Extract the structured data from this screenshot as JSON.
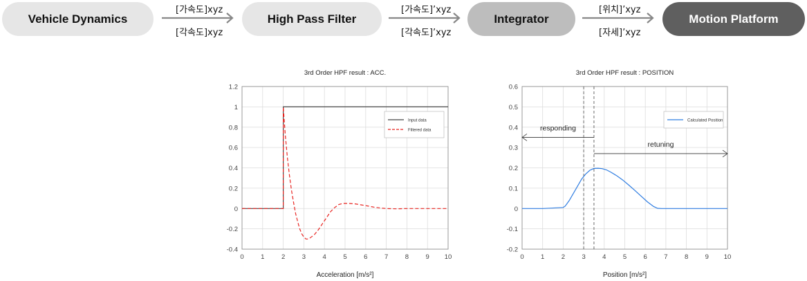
{
  "flow": {
    "steps": [
      {
        "label": "Vehicle Dynamics",
        "bg": "#e6e6e6",
        "fg": "#111111"
      },
      {
        "label": "High Pass Filter",
        "bg": "#e6e6e6",
        "fg": "#111111"
      },
      {
        "label": "Integrator",
        "bg": "#bdbdbd",
        "fg": "#111111"
      },
      {
        "label": "Motion Platform",
        "bg": "#5f5f5f",
        "fg": "#ffffff"
      }
    ],
    "arrows": [
      {
        "top": "[가속도]xyz",
        "bottom": "[각속도]xyz"
      },
      {
        "top": "[가속도]’xyz",
        "bottom": "[각속도]’xyz"
      },
      {
        "top": "[위치]’xyz",
        "bottom": "[자세]’xyz"
      }
    ]
  },
  "chart_data": [
    {
      "type": "line",
      "title": "3rd Order HPF result : ACC.",
      "xlabel": "Acceleration [m/s²]",
      "ylabel": "",
      "xlim": [
        0,
        10
      ],
      "ylim": [
        -0.4,
        1.2
      ],
      "xticks": [
        "0",
        "1",
        "2",
        "3",
        "4",
        "5",
        "6",
        "7",
        "8",
        "9",
        "10"
      ],
      "yticks": [
        "1.2",
        "1",
        "0.8",
        "0.6",
        "0.4",
        "0.2",
        "0",
        "-0.2",
        "-0.4"
      ],
      "ytick_values": [
        1.2,
        1,
        0.8,
        0.6,
        0.4,
        0.2,
        0,
        -0.2,
        -0.4
      ],
      "grid": true,
      "legend": "top-right",
      "series": [
        {
          "name": "Input data",
          "color": "#444444",
          "dash": false,
          "x": [
            0,
            2,
            2,
            10
          ],
          "y": [
            0,
            0,
            1,
            1
          ]
        },
        {
          "name": "Filtered data",
          "color": "#e8231f",
          "dash": true,
          "x": [
            0,
            2,
            2,
            2.1,
            2.2,
            2.3,
            2.4,
            2.5,
            2.6,
            2.7,
            2.8,
            2.9,
            3.0,
            3.1,
            3.2,
            3.3,
            3.5,
            3.7,
            3.9,
            4.1,
            4.3,
            4.5,
            4.7,
            4.9,
            5.2,
            5.5,
            5.8,
            6.1,
            6.4,
            6.7,
            7.0,
            7.5,
            8,
            9,
            10
          ],
          "y": [
            0,
            0,
            1,
            0.72,
            0.5,
            0.33,
            0.18,
            0.06,
            -0.05,
            -0.13,
            -0.2,
            -0.25,
            -0.28,
            -0.3,
            -0.3,
            -0.29,
            -0.26,
            -0.21,
            -0.15,
            -0.09,
            -0.03,
            0.01,
            0.04,
            0.05,
            0.05,
            0.045,
            0.035,
            0.025,
            0.013,
            0.005,
            0,
            -0.003,
            0,
            0,
            0
          ]
        }
      ]
    },
    {
      "type": "line",
      "title": "3rd Order HPF result : POSITION",
      "xlabel": "Position [m/s²]",
      "ylabel": "",
      "xlim": [
        0,
        10
      ],
      "ylim": [
        -0.2,
        0.6
      ],
      "xticks": [
        "0",
        "1",
        "2",
        "3",
        "4",
        "5",
        "6",
        "7",
        "8",
        "9",
        "10"
      ],
      "yticks": [
        "0.6",
        "0.5",
        "0.4",
        "0.3",
        "0.2",
        "0.1",
        "0",
        "-0.1",
        "-0.2"
      ],
      "ytick_values": [
        0.6,
        0.5,
        0.4,
        0.3,
        0.2,
        0.1,
        0,
        -0.1,
        -0.2
      ],
      "grid": true,
      "legend": "top-right",
      "annotations": [
        {
          "text": "responding",
          "from_x": 3.5,
          "to_x": 0,
          "at_y": 0.35
        },
        {
          "text": "retuning",
          "from_x": 3.5,
          "to_x": 10,
          "at_y": 0.27
        }
      ],
      "vlines": [
        3.5,
        3.0
      ],
      "series": [
        {
          "name": "Calculated Position",
          "color": "#2f7de1",
          "dash": false,
          "x": [
            0,
            1,
            2,
            2.1,
            2.3,
            2.5,
            2.7,
            2.9,
            3.1,
            3.3,
            3.5,
            3.7,
            3.9,
            4.1,
            4.3,
            4.6,
            4.9,
            5.2,
            5.5,
            5.8,
            6.1,
            6.4,
            6.6,
            6.8,
            7,
            8,
            9,
            10
          ],
          "y": [
            0,
            0,
            0.005,
            0.012,
            0.04,
            0.075,
            0.11,
            0.145,
            0.17,
            0.188,
            0.197,
            0.198,
            0.196,
            0.19,
            0.18,
            0.162,
            0.14,
            0.115,
            0.088,
            0.06,
            0.033,
            0.01,
            0.001,
            0,
            0,
            0,
            0,
            0
          ]
        }
      ]
    }
  ]
}
